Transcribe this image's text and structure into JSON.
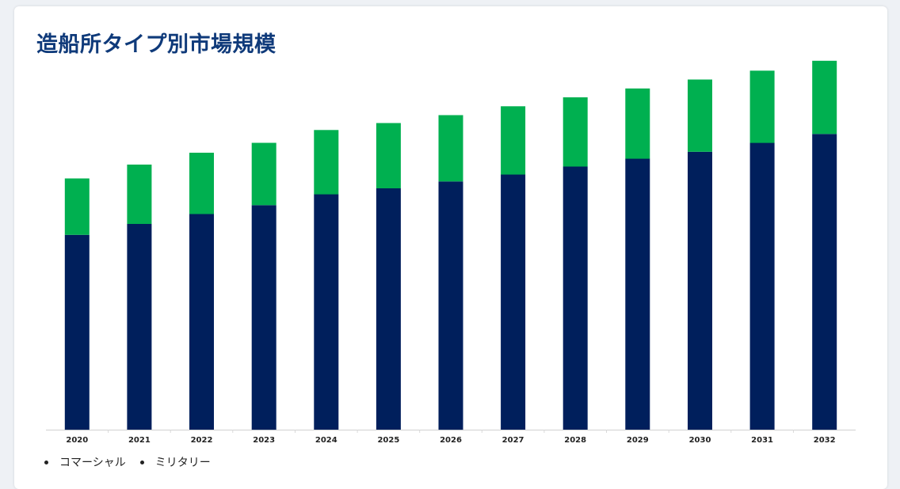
{
  "page": {
    "title": "造船所タイプ別市場規模"
  },
  "chart_data": {
    "type": "bar",
    "stacked": true,
    "title": "造船所タイプ別市場規模",
    "xlabel": "",
    "ylabel": "",
    "categories": [
      "2020",
      "2021",
      "2022",
      "2023",
      "2024",
      "2025",
      "2026",
      "2027",
      "2028",
      "2029",
      "2030",
      "2031",
      "2032"
    ],
    "series": [
      {
        "name": "コマーシャル",
        "color": "#001f5c",
        "values": [
          197,
          208,
          218,
          227,
          238,
          244,
          251,
          258,
          266,
          274,
          281,
          290,
          299
        ]
      },
      {
        "name": "ミリタリー",
        "color": "#00b050",
        "values": [
          57,
          60,
          62,
          63,
          65,
          66,
          67,
          69,
          70,
          71,
          73,
          73,
          74
        ]
      }
    ],
    "ylim": [
      0,
      400
    ],
    "grid": false,
    "legend_position": "bottom-left"
  }
}
